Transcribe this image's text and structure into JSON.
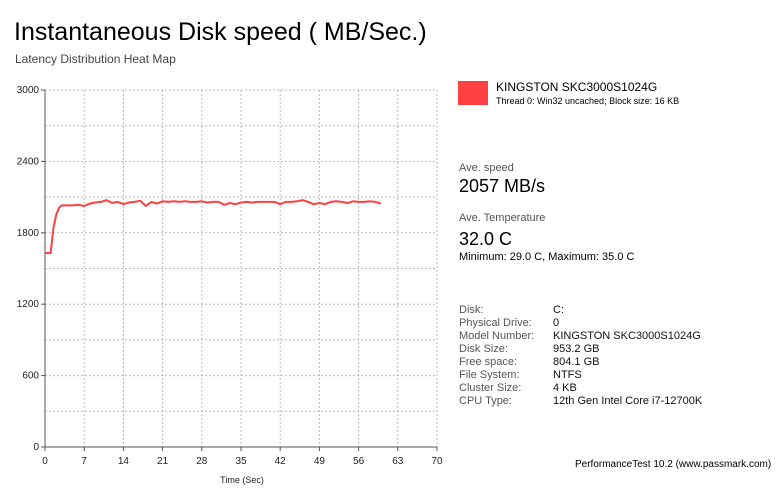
{
  "title": "Instantaneous Disk speed ( MB/Sec.)",
  "subtitle": "Latency Distribution Heat Map",
  "legend": {
    "name": "KINGSTON SKC3000S1024G",
    "detail": "Thread 0: Win32 uncached; Block size: 16 KB",
    "color": "#ff4040"
  },
  "stats": {
    "speed_label": "Ave. speed",
    "speed_value": "2057 MB/s",
    "temp_label": "Ave. Temperature",
    "temp_value": "32.0 C",
    "minmax": "Minimum: 29.0 C, Maximum: 35.0 C"
  },
  "info": [
    {
      "label": "Disk:",
      "value": "C:"
    },
    {
      "label": "Physical Drive:",
      "value": "0"
    },
    {
      "label": "Model Number:",
      "value": "KINGSTON SKC3000S1024G"
    },
    {
      "label": "Disk Size:",
      "value": "953.2 GB"
    },
    {
      "label": "Free space:",
      "value": "804.1 GB"
    },
    {
      "label": "File System:",
      "value": "NTFS"
    },
    {
      "label": "Cluster Size:",
      "value": "4 KB"
    },
    {
      "label": "CPU Type:",
      "value": "12th Gen Intel Core i7-12700K"
    }
  ],
  "footer": "PerformanceTest 10.2 (www.passmark.com)",
  "chart_data": {
    "type": "line",
    "xlabel": "Time (Sec)",
    "ylabel": "",
    "xlim": [
      0,
      70
    ],
    "ylim": [
      0,
      3000
    ],
    "x_ticks": [
      0,
      7,
      14,
      21,
      28,
      35,
      42,
      49,
      56,
      63,
      70
    ],
    "y_ticks": [
      0,
      600,
      1200,
      1800,
      2400,
      3000
    ],
    "grid": true,
    "series": [
      {
        "name": "KINGSTON SKC3000S1024G",
        "color": "#ff4040",
        "x": [
          0,
          1,
          1.5,
          2,
          2.5,
          3,
          4,
          5,
          6,
          7,
          8,
          9,
          10,
          11,
          12,
          13,
          14,
          15,
          16,
          17,
          18,
          19,
          20,
          21,
          22,
          23,
          24,
          25,
          26,
          27,
          28,
          29,
          30,
          31,
          32,
          33,
          34,
          35,
          36,
          37,
          38,
          39,
          40,
          41,
          42,
          43,
          44,
          45,
          46,
          47,
          48,
          49,
          50,
          51,
          52,
          53,
          54,
          55,
          56,
          57,
          58,
          59,
          60
        ],
        "y": [
          1630,
          1630,
          1840,
          1950,
          2010,
          2030,
          2030,
          2030,
          2035,
          2025,
          2045,
          2055,
          2060,
          2075,
          2050,
          2060,
          2040,
          2055,
          2060,
          2070,
          2025,
          2060,
          2045,
          2065,
          2060,
          2065,
          2060,
          2065,
          2060,
          2060,
          2065,
          2055,
          2060,
          2060,
          2035,
          2050,
          2040,
          2055,
          2060,
          2055,
          2060,
          2060,
          2060,
          2060,
          2040,
          2060,
          2060,
          2065,
          2075,
          2060,
          2040,
          2050,
          2040,
          2060,
          2065,
          2060,
          2050,
          2065,
          2060,
          2060,
          2065,
          2060,
          2045
        ]
      }
    ]
  }
}
